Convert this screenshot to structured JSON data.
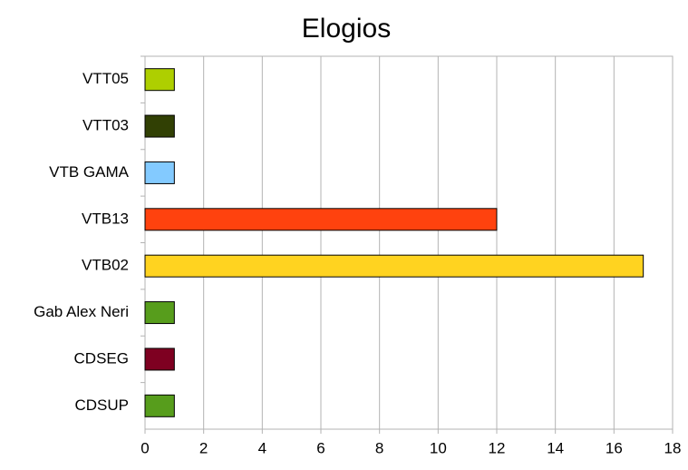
{
  "chart_data": {
    "type": "hbar",
    "title": "Elogios",
    "categories": [
      "VTT05",
      "VTT03",
      "VTB GAMA",
      "VTB13",
      "VTB02",
      "Gab Alex Neri",
      "CDSEG",
      "CDSUP"
    ],
    "values": [
      1,
      1,
      1,
      12,
      17,
      1,
      1,
      1
    ],
    "colors": [
      "#aecf00",
      "#314004",
      "#83caff",
      "#ff420e",
      "#ffd320",
      "#579d1c",
      "#7e0021",
      "#579d1c"
    ],
    "xlim": [
      0,
      18
    ],
    "xticks": [
      0,
      2,
      4,
      6,
      8,
      10,
      12,
      14,
      16,
      18
    ],
    "grid": true
  }
}
